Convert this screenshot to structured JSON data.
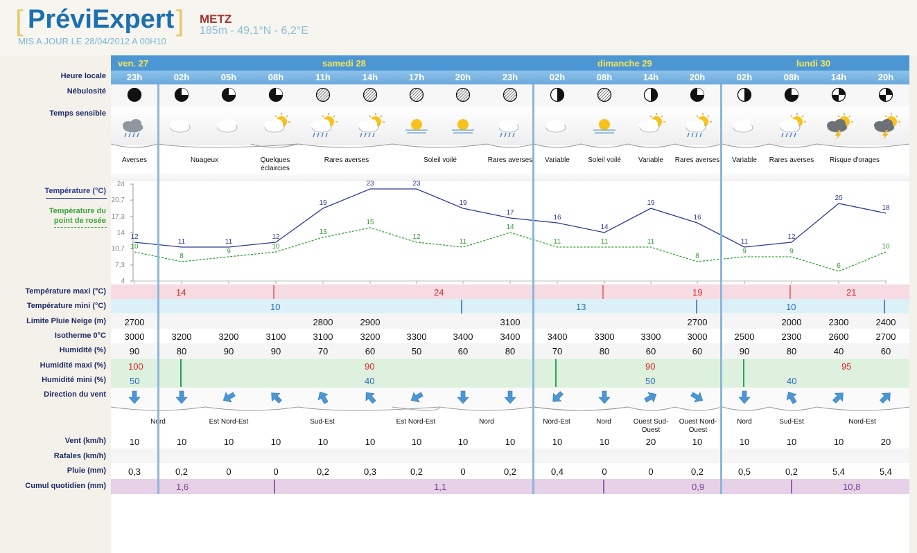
{
  "header": {
    "logo": "PréviExpert",
    "update": "MIS A JOUR LE 28/04/2012 A 00H10",
    "city": "METZ",
    "coords": "185m - 49,1°N - 6,2°E"
  },
  "days": [
    {
      "label": "ven. 27"
    },
    {
      "label": "samedi 28"
    },
    {
      "label": "dimanche 29"
    },
    {
      "label": "lundi 30"
    }
  ],
  "row_labels": {
    "heure": "Heure locale",
    "nebulosite": "Nébulosité",
    "temps": "Temps sensible",
    "temperature": "Température (°C)",
    "rosee_line1": "Température du",
    "rosee_line2": "point de rosée",
    "tmax": "Température maxi (°C)",
    "tmin": "Température mini (°C)",
    "pluie_neige": "Limite Pluie Neige (m)",
    "isotherme": "Isotherme 0°C",
    "humidite": "Humidité (%)",
    "hum_max": "Humidité maxi (%)",
    "hum_min": "Humidité mini (%)",
    "direction": "Direction du vent",
    "vent": "Vent (km/h)",
    "rafales": "Rafales (km/h)",
    "pluie": "Pluie (mm)",
    "cumul": "Cumul quotidien (mm)"
  },
  "hours": [
    "23h",
    "02h",
    "05h",
    "08h",
    "11h",
    "14h",
    "17h",
    "20h",
    "23h",
    "02h",
    "08h",
    "14h",
    "20h",
    "02h",
    "08h",
    "14h",
    "20h"
  ],
  "nebulosite": [
    "full",
    "3q",
    "3q",
    "3q",
    "hatch",
    "hatch",
    "hatch",
    "hatch",
    "hatch",
    "half",
    "hatch",
    "half",
    "3q",
    "half",
    "3q",
    "cross",
    "cross"
  ],
  "weather_icons": [
    "rain",
    "cloud",
    "cloud",
    "sun-cloud",
    "sun-rain",
    "sun-rain",
    "sun-haze",
    "sun-haze",
    "cloud-rain",
    "cloud",
    "sun-haze",
    "sun-cloud",
    "sun-rain",
    "cloud",
    "sun-rain",
    "storm",
    "storm"
  ],
  "weather_desc": [
    {
      "text": "Averses"
    },
    {
      "text": "Nuageux"
    },
    {
      "text": "Quelques éclaircies"
    },
    {
      "text": "Rares averses"
    },
    {
      "text": "Soleil voilé"
    },
    {
      "text": "Rares averses"
    },
    {
      "text": "Variable"
    },
    {
      "text": "Soleil voilé"
    },
    {
      "text": "Variable"
    },
    {
      "text": "Rares averses"
    },
    {
      "text": "Variable"
    },
    {
      "text": "Rares averses"
    },
    {
      "text": "Risque d'orages"
    }
  ],
  "chart_data": {
    "type": "line",
    "x": [
      "23h",
      "02h",
      "05h",
      "08h",
      "11h",
      "14h",
      "17h",
      "20h",
      "23h",
      "02h",
      "08h",
      "14h",
      "20h",
      "02h",
      "08h",
      "14h",
      "20h"
    ],
    "y_ticks": [
      "24",
      "20,7",
      "17,3",
      "14",
      "10,7",
      "7,3",
      "4"
    ],
    "ylim": [
      4,
      24
    ],
    "series": [
      {
        "name": "Température (°C)",
        "color": "#2b3a94",
        "values": [
          12,
          11,
          11,
          12,
          19,
          23,
          23,
          19,
          17,
          16,
          14,
          19,
          16,
          11,
          12,
          20,
          18
        ]
      },
      {
        "name": "Température du point de rosée",
        "color": "#2ea02e",
        "values": [
          10,
          8,
          9,
          10,
          13,
          15,
          12,
          11,
          14,
          11,
          11,
          11,
          8,
          9,
          9,
          6,
          10
        ]
      }
    ]
  },
  "tmax": [
    {
      "value": "14"
    },
    {
      "value": "24"
    },
    {
      "value": "19"
    },
    {
      "value": "21"
    }
  ],
  "tmin": [
    {
      "value": "10"
    },
    {
      "value": "13"
    },
    {
      "value": "10"
    }
  ],
  "pluie_neige": [
    "2700",
    "",
    "",
    "",
    "2800",
    "2900",
    "",
    "",
    "3100",
    "",
    "",
    "",
    "2700",
    "",
    "2000",
    "2300",
    "2400"
  ],
  "isotherme": [
    "3000",
    "3200",
    "3200",
    "3100",
    "3100",
    "3200",
    "3300",
    "3400",
    "3400",
    "3400",
    "3300",
    "3300",
    "3000",
    "2500",
    "2300",
    "2600",
    "2700"
  ],
  "humidite": [
    "90",
    "80",
    "90",
    "90",
    "70",
    "60",
    "50",
    "60",
    "80",
    "70",
    "80",
    "60",
    "60",
    "90",
    "80",
    "40",
    "60"
  ],
  "hum_max": [
    {
      "value": "100"
    },
    {
      "value": "90"
    },
    {
      "value": "90"
    },
    {
      "value": "95"
    }
  ],
  "hum_min": [
    {
      "value": "50"
    },
    {
      "value": "40"
    },
    {
      "value": "50"
    },
    {
      "value": "40"
    }
  ],
  "wind_dir_deg": [
    180,
    180,
    240,
    315,
    330,
    320,
    240,
    180,
    180,
    225,
    180,
    60,
    120,
    180,
    330,
    45,
    45
  ],
  "wind_desc": [
    {
      "text": "Nord"
    },
    {
      "text": "Est Nord-Est"
    },
    {
      "text": "Sud-Est"
    },
    {
      "text": "Est Nord-Est"
    },
    {
      "text": "Nord"
    },
    {
      "text": "Nord-Est"
    },
    {
      "text": "Nord"
    },
    {
      "text": "Ouest Sud-Ouest"
    },
    {
      "text": "Ouest Nord-Ouest"
    },
    {
      "text": "Nord"
    },
    {
      "text": "Sud-Est"
    },
    {
      "text": "Nord-Est"
    }
  ],
  "vent": [
    "10",
    "10",
    "10",
    "10",
    "10",
    "10",
    "10",
    "10",
    "10",
    "10",
    "10",
    "20",
    "10",
    "10",
    "10",
    "10",
    "20"
  ],
  "rafales": [
    "",
    "",
    "",
    "",
    "",
    "",
    "",
    "",
    "",
    "",
    "",
    "",
    "",
    "",
    "",
    "",
    ""
  ],
  "pluie": [
    "0,3",
    "0,2",
    "0",
    "0",
    "0,2",
    "0,3",
    "0,2",
    "0",
    "0,2",
    "0,4",
    "0",
    "0",
    "0,2",
    "0,5",
    "0,2",
    "5,4",
    "5,4"
  ],
  "cumul": [
    {
      "value": "1,6"
    },
    {
      "value": "1,1"
    },
    {
      "value": "0,9"
    },
    {
      "value": "10,8"
    }
  ],
  "colors": {
    "day_band": "#4c97d3",
    "day_text": "#f4e45a",
    "tmax_band": "#f6dbe3",
    "tmax_text": "#d92b2b",
    "tmin_band": "#dcf0f7",
    "tmin_text": "#2c6fb8",
    "hum_band": "#def0de",
    "cumul_band": "#e6d1e6",
    "cumul_text": "#7a3a9a",
    "label_text": "#1d2a66"
  }
}
